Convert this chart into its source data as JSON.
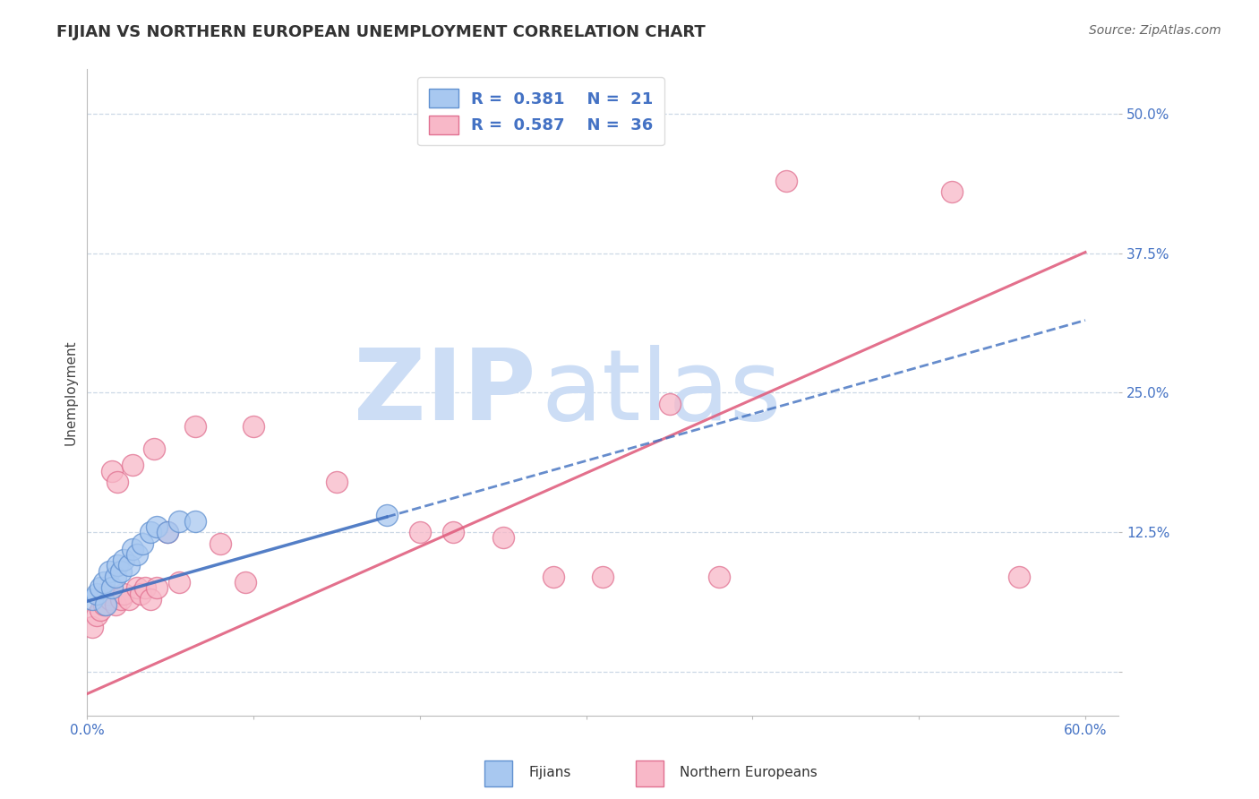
{
  "title": "FIJIAN VS NORTHERN EUROPEAN UNEMPLOYMENT CORRELATION CHART",
  "source_text": "Source: ZipAtlas.com",
  "ylabel": "Unemployment",
  "xlim": [
    0.0,
    0.62
  ],
  "ylim": [
    -0.04,
    0.54
  ],
  "yticks": [
    0.0,
    0.125,
    0.25,
    0.375,
    0.5
  ],
  "ytick_labels": [
    "",
    "12.5%",
    "25.0%",
    "37.5%",
    "50.0%"
  ],
  "xticks": [
    0.0,
    0.1,
    0.2,
    0.3,
    0.4,
    0.5,
    0.6
  ],
  "xtick_labels": [
    "0.0%",
    "",
    "",
    "",
    "",
    "",
    "60.0%"
  ],
  "fijians_R": 0.381,
  "fijians_N": 21,
  "northern_R": 0.587,
  "northern_N": 36,
  "fijians_color": "#a8c8f0",
  "fijians_edge": "#6090d0",
  "northern_color": "#f8b8c8",
  "northern_edge": "#e07090",
  "trend_fijian_color": "#4070c0",
  "trend_northern_color": "#e06080",
  "watermark_zip": "ZIP",
  "watermark_atlas": "atlas",
  "watermark_color": "#ccddf5",
  "fijians_x": [
    0.003,
    0.006,
    0.008,
    0.01,
    0.011,
    0.013,
    0.015,
    0.017,
    0.018,
    0.02,
    0.022,
    0.025,
    0.027,
    0.03,
    0.033,
    0.038,
    0.042,
    0.048,
    0.055,
    0.065,
    0.18
  ],
  "fijians_y": [
    0.065,
    0.07,
    0.075,
    0.08,
    0.06,
    0.09,
    0.075,
    0.085,
    0.095,
    0.09,
    0.1,
    0.095,
    0.11,
    0.105,
    0.115,
    0.125,
    0.13,
    0.125,
    0.135,
    0.135,
    0.14
  ],
  "northern_x": [
    0.003,
    0.006,
    0.008,
    0.01,
    0.012,
    0.014,
    0.015,
    0.017,
    0.018,
    0.02,
    0.022,
    0.025,
    0.027,
    0.03,
    0.032,
    0.035,
    0.038,
    0.04,
    0.042,
    0.048,
    0.055,
    0.065,
    0.08,
    0.095,
    0.1,
    0.15,
    0.2,
    0.22,
    0.25,
    0.28,
    0.31,
    0.35,
    0.38,
    0.42,
    0.52,
    0.56
  ],
  "northern_y": [
    0.04,
    0.05,
    0.055,
    0.06,
    0.07,
    0.065,
    0.18,
    0.06,
    0.17,
    0.065,
    0.07,
    0.065,
    0.185,
    0.075,
    0.07,
    0.075,
    0.065,
    0.2,
    0.075,
    0.125,
    0.08,
    0.22,
    0.115,
    0.08,
    0.22,
    0.17,
    0.125,
    0.125,
    0.12,
    0.085,
    0.085,
    0.24,
    0.085,
    0.44,
    0.43,
    0.085
  ],
  "background_color": "#ffffff",
  "grid_color": "#c0cfe0",
  "title_color": "#333333",
  "tick_color": "#4472c4",
  "legend_text_color_blue": "#4472c4",
  "legend_text_color_pink": "#e06080"
}
